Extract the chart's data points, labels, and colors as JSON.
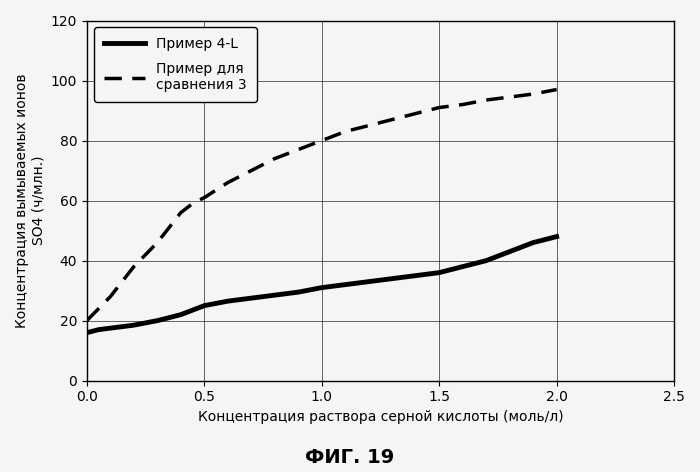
{
  "title": "ФИГ. 19",
  "ylabel_line1": "Концентрация вымываемых ионов",
  "ylabel_line2": "SO4 (ч/млн.)",
  "xlabel": "Концентрация раствора серной кислоты (моль/л)",
  "xlim": [
    0,
    2.5
  ],
  "ylim": [
    0,
    120
  ],
  "xticks": [
    0,
    0.5,
    1.0,
    1.5,
    2.0,
    2.5
  ],
  "yticks": [
    0,
    20,
    40,
    60,
    80,
    100,
    120
  ],
  "series1_label": "Пример 4-L",
  "series1_x": [
    0,
    0.05,
    0.1,
    0.2,
    0.3,
    0.4,
    0.5,
    0.6,
    0.7,
    0.8,
    0.9,
    1.0,
    1.1,
    1.2,
    1.3,
    1.4,
    1.5,
    1.6,
    1.7,
    1.8,
    1.9,
    2.0
  ],
  "series1_y": [
    16,
    17,
    17.5,
    18.5,
    20,
    22,
    25,
    26.5,
    27.5,
    28.5,
    29.5,
    31,
    32,
    33,
    34,
    35,
    36,
    38,
    40,
    43,
    46,
    48
  ],
  "series1_color": "#000000",
  "series1_linewidth": 3.5,
  "series2_label": "Пример для\nсравнения 3",
  "series2_x": [
    0,
    0.05,
    0.1,
    0.15,
    0.2,
    0.25,
    0.3,
    0.35,
    0.4,
    0.45,
    0.5,
    0.6,
    0.7,
    0.8,
    0.9,
    1.0,
    1.1,
    1.2,
    1.3,
    1.4,
    1.5,
    1.6,
    1.7,
    1.8,
    1.9,
    2.0
  ],
  "series2_y": [
    20,
    24,
    28,
    33,
    38,
    42,
    46,
    51,
    56,
    59,
    61,
    66,
    70,
    74,
    77,
    80,
    83,
    85,
    87,
    89,
    91,
    92,
    93.5,
    94.5,
    95.5,
    97
  ],
  "series2_color": "#000000",
  "series2_linewidth": 2.5,
  "background_color": "#f5f5f5",
  "grid_color": "#000000",
  "legend_fontsize": 10,
  "axis_fontsize": 10,
  "title_fontsize": 14,
  "tick_fontsize": 10
}
